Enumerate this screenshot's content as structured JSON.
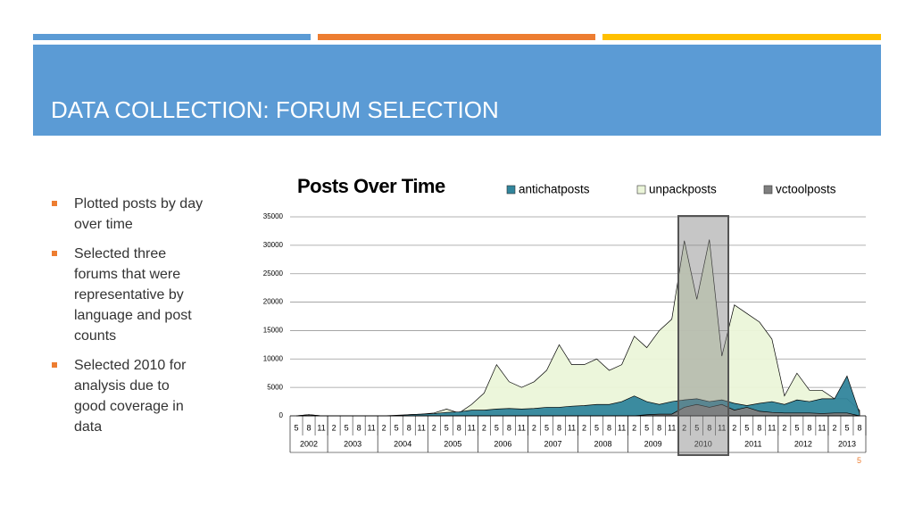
{
  "slide": {
    "title": "DATA COLLECTION: FORUM SELECTION",
    "page_number": "5",
    "bullets": [
      "Plotted posts by day over time",
      "Selected three forums that were representative by language and post counts",
      "Selected 2010 for analysis due to good coverage in data"
    ]
  },
  "chart_data": {
    "type": "area",
    "title": "Posts Over Time",
    "categories": [
      "5",
      "8",
      "11",
      "2",
      "5",
      "8",
      "11",
      "2",
      "5",
      "8",
      "11",
      "2",
      "5",
      "8",
      "11",
      "2",
      "5",
      "8",
      "11",
      "2",
      "5",
      "8",
      "11",
      "2",
      "5",
      "8",
      "11",
      "2",
      "5",
      "8",
      "11",
      "2",
      "5",
      "8",
      "11",
      "2",
      "5",
      "8",
      "11",
      "2",
      "5",
      "8",
      "11",
      "2",
      "5",
      "8"
    ],
    "x_groups": [
      "2002",
      "2003",
      "2004",
      "2005",
      "2006",
      "2007",
      "2008",
      "2009",
      "2010",
      "2011",
      "2012",
      "2013"
    ],
    "series": [
      {
        "name": "unpackposts",
        "color": "#ebf5d9",
        "values": [
          0,
          200,
          0,
          0,
          0,
          0,
          0,
          0,
          0,
          200,
          300,
          500,
          1200,
          500,
          2000,
          4000,
          9000,
          6000,
          5000,
          6000,
          8000,
          12500,
          9000,
          9000,
          10000,
          8000,
          9000,
          14000,
          12000,
          15000,
          17000,
          30800,
          20500,
          31000,
          10500,
          19500,
          18000,
          16500,
          13500,
          3500,
          7500,
          4500,
          4500,
          3000,
          3000,
          1000
        ]
      },
      {
        "name": "antichatposts",
        "color": "#31859c",
        "values": [
          0,
          0,
          0,
          0,
          0,
          0,
          0,
          0,
          100,
          200,
          300,
          400,
          600,
          700,
          1000,
          1000,
          1200,
          1300,
          1200,
          1300,
          1500,
          1500,
          1700,
          1800,
          2000,
          2000,
          2500,
          3500,
          2500,
          2000,
          2500,
          2800,
          3000,
          2500,
          2800,
          2200,
          1800,
          2200,
          2500,
          2000,
          2800,
          2500,
          3000,
          3000,
          7000,
          500
        ]
      },
      {
        "name": "vctoolposts",
        "color": "#7f7f7f",
        "values": [
          0,
          200,
          0,
          0,
          0,
          0,
          0,
          0,
          0,
          0,
          0,
          0,
          0,
          0,
          0,
          0,
          0,
          0,
          0,
          0,
          0,
          0,
          0,
          0,
          0,
          0,
          0,
          0,
          200,
          300,
          300,
          1500,
          2000,
          1500,
          2000,
          1000,
          1500,
          800,
          600,
          500,
          500,
          500,
          400,
          500,
          500,
          0
        ]
      }
    ],
    "ylim": [
      0,
      35000
    ],
    "yticks": [
      0,
      5000,
      10000,
      15000,
      20000,
      25000,
      30000,
      35000
    ],
    "grid": true
  }
}
